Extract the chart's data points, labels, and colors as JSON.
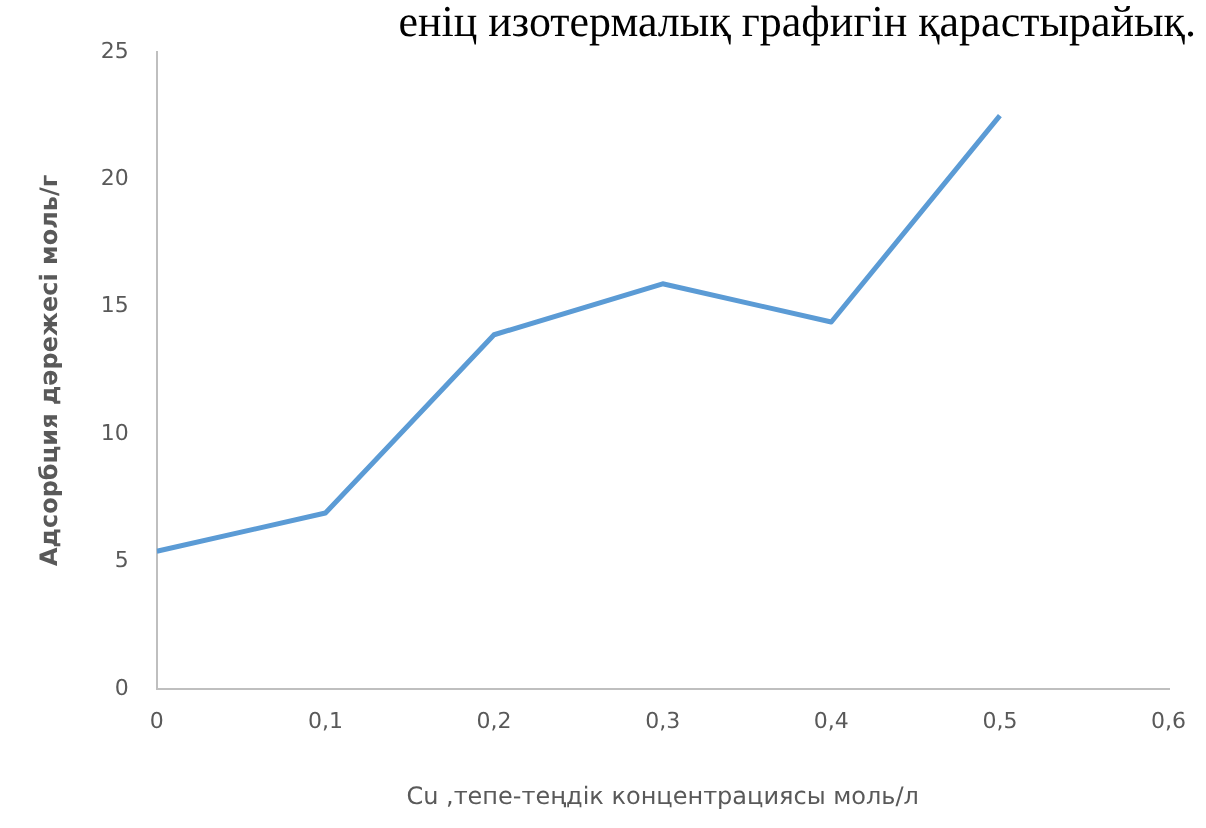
{
  "chart_data": {
    "type": "line",
    "xlabel": "Cu ,тепе-теңдік концентрациясы моль/л",
    "ylabel": "Адсорбция дәрежесі моль/г",
    "annotations": [
      "еніц изотермалық графигін қарастырайық."
    ],
    "x": [
      0,
      0.1,
      0.2,
      0.3,
      0.4,
      0.5
    ],
    "series": [
      {
        "color": "#5b9bd5",
        "values": [
          5.4,
          6.9,
          13.9,
          15.9,
          14.4,
          22.5
        ]
      }
    ],
    "xlim": [
      0,
      0.6
    ],
    "xticks": [
      0,
      {
        "value": 0.1,
        "label": "0,1"
      },
      {
        "value": 0.2,
        "label": "0,2"
      },
      {
        "value": 0.3,
        "label": "0,3"
      },
      {
        "value": 0.4,
        "label": "0,4"
      },
      {
        "value": 0.5,
        "label": "0,5"
      },
      {
        "value": 0.6,
        "label": "0,6"
      }
    ],
    "ylim": [
      0,
      25
    ],
    "yticks": [
      0,
      5,
      10,
      15,
      20,
      25
    ],
    "grid": false,
    "legend": false,
    "marker": "none",
    "line_style": "solid"
  }
}
